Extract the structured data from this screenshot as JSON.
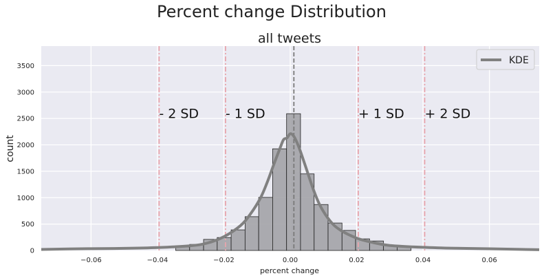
{
  "chart_data": {
    "type": "bar",
    "suptitle": "Percent change Distribution",
    "title": "all tweets",
    "xlabel": "percent change",
    "ylabel": "count",
    "xlim": [
      -0.075,
      0.075
    ],
    "ylim": [
      0,
      3870
    ],
    "grid": true,
    "legend_position": "top-right",
    "x_ticks": [
      -0.06,
      -0.04,
      -0.02,
      0.0,
      0.02,
      0.04,
      0.06
    ],
    "x_tick_labels": [
      "−0.06",
      "−0.04",
      "−0.02",
      "0.00",
      "0.02",
      "0.04",
      "0.06"
    ],
    "y_ticks": [
      0,
      500,
      1000,
      1500,
      2000,
      2500,
      3000,
      3500
    ],
    "y_tick_labels": [
      "0",
      "500",
      "1000",
      "1500",
      "2000",
      "2500",
      "3000",
      "3500"
    ],
    "histogram": {
      "bin_edges": [
        -0.0345,
        -0.0303,
        -0.0261,
        -0.022,
        -0.0178,
        -0.0136,
        -0.0095,
        -0.0053,
        -0.0011,
        0.0031,
        0.0072,
        0.0114,
        0.0156,
        0.0197,
        0.0239,
        0.0281,
        0.0322,
        0.0364
      ],
      "counts": [
        65,
        115,
        210,
        245,
        390,
        640,
        1005,
        1925,
        2590,
        1450,
        870,
        520,
        380,
        220,
        180,
        100,
        75
      ],
      "color": "#a3a3a7"
    },
    "series": [
      {
        "name": "KDE",
        "color": "#808080",
        "x": [
          -0.075,
          -0.06,
          -0.05,
          -0.04,
          -0.03,
          -0.025,
          -0.02,
          -0.015,
          -0.012,
          -0.009,
          -0.007,
          -0.005,
          -0.003,
          -0.002,
          -0.001,
          0.0,
          0.001,
          0.002,
          0.003,
          0.005,
          0.007,
          0.009,
          0.012,
          0.015,
          0.02,
          0.025,
          0.03,
          0.04,
          0.05,
          0.06,
          0.075
        ],
        "y": [
          20,
          35,
          40,
          55,
          90,
          140,
          260,
          470,
          690,
          990,
          1280,
          1620,
          1950,
          2100,
          2130,
          2210,
          2170,
          2050,
          1890,
          1520,
          1150,
          850,
          560,
          390,
          235,
          150,
          95,
          60,
          42,
          32,
          15
        ]
      }
    ],
    "reference_lines": [
      {
        "x": 0.0011,
        "color": "#7a7a7a",
        "style": "dashed"
      },
      {
        "x": -0.0395,
        "color": "#e8a4ac",
        "style": "dashdot"
      },
      {
        "x": -0.0195,
        "color": "#e8a4ac",
        "style": "dashdot"
      },
      {
        "x": 0.0205,
        "color": "#e8a4ac",
        "style": "dashdot"
      },
      {
        "x": 0.0405,
        "color": "#e8a4ac",
        "style": "dashdot"
      }
    ],
    "annotations": [
      {
        "text": "- 2 SD",
        "x": -0.0395,
        "y": 2600
      },
      {
        "text": "- 1 SD",
        "x": -0.0195,
        "y": 2600
      },
      {
        "text": "+ 1 SD",
        "x": 0.0205,
        "y": 2600
      },
      {
        "text": "+ 2 SD",
        "x": 0.0405,
        "y": 2600
      }
    ],
    "background_color": "#eaeaf2"
  }
}
